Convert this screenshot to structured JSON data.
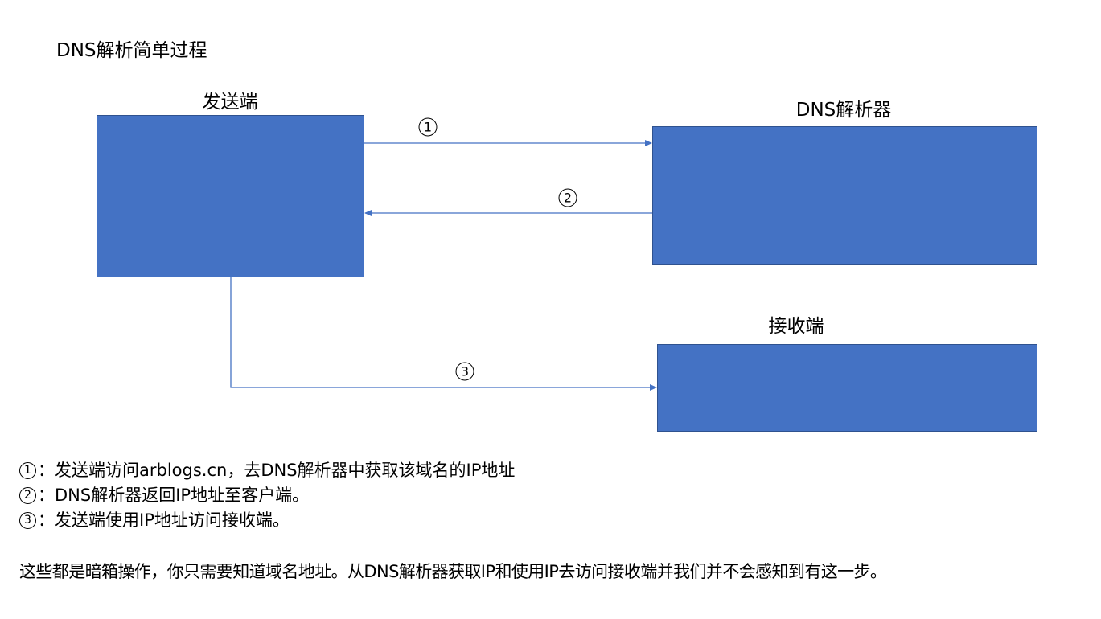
{
  "title": "DNS解析简单过程",
  "nodes": {
    "sender": {
      "label": "发送端"
    },
    "dns_resolver": {
      "label": "DNS解析器"
    },
    "receiver": {
      "label": "接收端"
    }
  },
  "steps": [
    {
      "number": "1",
      "from": "发送端",
      "to": "DNS解析器"
    },
    {
      "number": "2",
      "from": "DNS解析器",
      "to": "发送端"
    },
    {
      "number": "3",
      "from": "发送端",
      "to": "接收端"
    }
  ],
  "notes": [
    {
      "number": "1",
      "separator": "：",
      "text": "发送端访问arblogs.cn，去DNS解析器中获取该域名的IP地址"
    },
    {
      "number": "2",
      "separator": "：",
      "text": "DNS解析器返回IP地址至客户端。"
    },
    {
      "number": "3",
      "separator": "：",
      "text": "发送端使用IP地址访问接收端。"
    }
  ],
  "summary": "这些都是暗箱操作，你只需要知道域名地址。从DNS解析器获取IP和使用IP去访问接收端并我们并不会感知到有这一步。",
  "colors": {
    "box_fill": "#4472c4",
    "box_border": "#2f528f",
    "arrow": "#4472c4"
  }
}
